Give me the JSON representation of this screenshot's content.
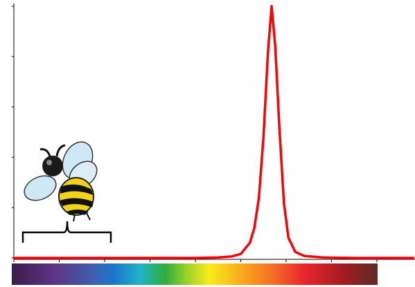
{
  "chart_data": {
    "type": "line",
    "x": [
      0,
      1,
      2,
      3,
      4,
      4.5,
      4.8,
      5.0,
      5.2,
      5.3,
      5.4,
      5.5,
      5.6,
      5.68,
      5.76,
      5.85,
      5.95,
      6.05,
      6.2,
      6.4,
      6.8,
      7.5,
      8.8
    ],
    "values": [
      0,
      0,
      0,
      0,
      0,
      0.01,
      0.03,
      0.08,
      0.3,
      0.6,
      1.2,
      2.4,
      4.1,
      5.0,
      4.2,
      2.6,
      1.1,
      0.4,
      0.12,
      0.04,
      0.01,
      0,
      0
    ],
    "color": "#ff0000",
    "xlim": [
      0,
      8.8
    ],
    "ylim": [
      0,
      5
    ],
    "xticks": [
      0,
      1,
      2,
      3,
      4,
      5,
      6,
      7,
      8
    ],
    "yticks": [
      0,
      1,
      2,
      3,
      4,
      5
    ]
  }
}
